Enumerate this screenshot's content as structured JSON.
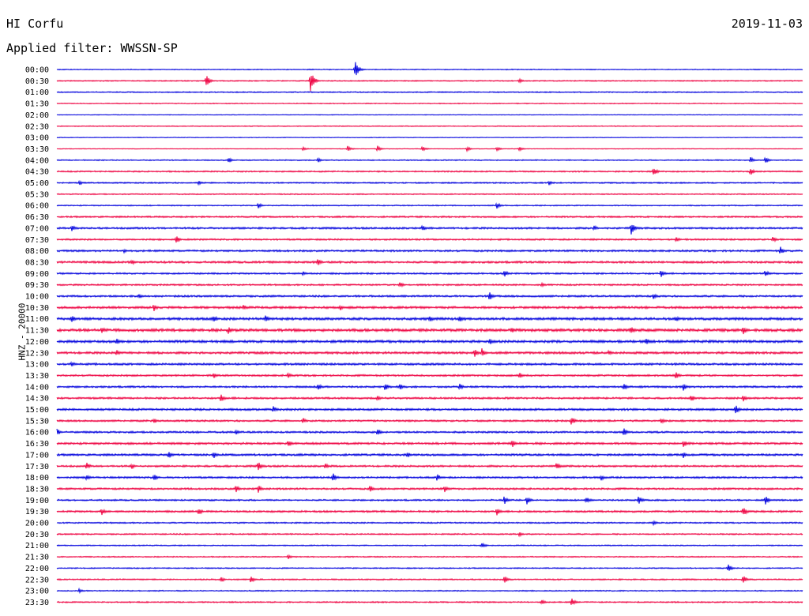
{
  "header": {
    "station": "HI Corfu",
    "date": "2019-11-03",
    "filter_label": "Applied filter: WWSSN-SP"
  },
  "colors": {
    "blue": "#0000dd",
    "red": "#ee0040",
    "text": "#000000"
  },
  "chart_data": {
    "type": "line",
    "title": "HI Corfu",
    "subtitle": "Applied filter: WWSSN-SP",
    "ylabel": "HNZ - 20000",
    "xlabel": "",
    "grid": false,
    "series_colors_alternate": [
      "blue",
      "red"
    ],
    "row_labels": [
      "00:00",
      "00:30",
      "01:00",
      "01:30",
      "02:00",
      "02:30",
      "03:00",
      "03:30",
      "04:00",
      "04:30",
      "05:00",
      "05:30",
      "06:00",
      "06:30",
      "07:00",
      "07:30",
      "08:00",
      "08:30",
      "09:00",
      "09:30",
      "10:00",
      "10:30",
      "11:00",
      "11:30",
      "12:00",
      "12:30",
      "13:00",
      "13:30",
      "14:00",
      "14:30",
      "15:00",
      "15:30",
      "16:00",
      "16:30",
      "17:00",
      "17:30",
      "18:00",
      "18:30",
      "19:00",
      "19:30",
      "20:00",
      "20:30",
      "21:00",
      "21:30",
      "22:00",
      "22:30",
      "23:00",
      "23:30"
    ],
    "noise_level": [
      0.4,
      0.5,
      0.5,
      0.4,
      0.3,
      0.4,
      0.3,
      0.3,
      0.5,
      0.6,
      0.6,
      0.5,
      0.5,
      0.7,
      0.8,
      0.7,
      0.8,
      0.9,
      0.7,
      0.7,
      0.8,
      1.0,
      1.1,
      1.2,
      1.1,
      1.0,
      0.9,
      0.8,
      0.8,
      0.8,
      0.9,
      0.8,
      0.8,
      0.9,
      0.9,
      0.8,
      0.8,
      0.8,
      0.7,
      0.8,
      0.6,
      0.6,
      0.5,
      0.5,
      0.5,
      0.6,
      0.5,
      0.6
    ],
    "events": [
      {
        "row": 0,
        "x": 0.4,
        "amp": 12
      },
      {
        "row": 1,
        "x": 0.2,
        "amp": 9
      },
      {
        "row": 1,
        "x": 0.34,
        "amp": 14
      },
      {
        "row": 1,
        "x": 0.62,
        "amp": 3
      },
      {
        "row": 7,
        "x": 0.33,
        "amp": 3
      },
      {
        "row": 7,
        "x": 0.39,
        "amp": 4
      },
      {
        "row": 7,
        "x": 0.43,
        "amp": 4
      },
      {
        "row": 7,
        "x": 0.49,
        "amp": 4
      },
      {
        "row": 7,
        "x": 0.55,
        "amp": 3
      },
      {
        "row": 7,
        "x": 0.59,
        "amp": 3
      },
      {
        "row": 7,
        "x": 0.62,
        "amp": 3
      },
      {
        "row": 8,
        "x": 0.23,
        "amp": 4
      },
      {
        "row": 8,
        "x": 0.35,
        "amp": 3
      },
      {
        "row": 8,
        "x": 0.93,
        "amp": 4
      },
      {
        "row": 8,
        "x": 0.95,
        "amp": 5
      },
      {
        "row": 9,
        "x": 0.8,
        "amp": 6
      },
      {
        "row": 9,
        "x": 0.93,
        "amp": 5
      },
      {
        "row": 10,
        "x": 0.03,
        "amp": 3
      },
      {
        "row": 10,
        "x": 0.19,
        "amp": 3
      },
      {
        "row": 10,
        "x": 0.66,
        "amp": 3
      },
      {
        "row": 12,
        "x": 0.27,
        "amp": 4
      },
      {
        "row": 12,
        "x": 0.59,
        "amp": 4
      },
      {
        "row": 14,
        "x": 0.02,
        "amp": 5
      },
      {
        "row": 14,
        "x": 0.49,
        "amp": 4
      },
      {
        "row": 14,
        "x": 0.72,
        "amp": 4
      },
      {
        "row": 14,
        "x": 0.77,
        "amp": 9
      },
      {
        "row": 15,
        "x": 0.16,
        "amp": 5
      },
      {
        "row": 15,
        "x": 0.83,
        "amp": 4
      },
      {
        "row": 15,
        "x": 0.96,
        "amp": 4
      },
      {
        "row": 16,
        "x": 0.09,
        "amp": 3
      },
      {
        "row": 16,
        "x": 0.97,
        "amp": 6
      },
      {
        "row": 17,
        "x": 0.1,
        "amp": 4
      },
      {
        "row": 17,
        "x": 0.35,
        "amp": 5
      },
      {
        "row": 18,
        "x": 0.33,
        "amp": 3
      },
      {
        "row": 18,
        "x": 0.6,
        "amp": 5
      },
      {
        "row": 18,
        "x": 0.81,
        "amp": 5
      },
      {
        "row": 18,
        "x": 0.95,
        "amp": 5
      },
      {
        "row": 19,
        "x": 0.46,
        "amp": 4
      },
      {
        "row": 19,
        "x": 0.65,
        "amp": 3
      },
      {
        "row": 20,
        "x": 0.11,
        "amp": 4
      },
      {
        "row": 20,
        "x": 0.58,
        "amp": 6
      },
      {
        "row": 20,
        "x": 0.8,
        "amp": 4
      },
      {
        "row": 21,
        "x": 0.13,
        "amp": 5
      },
      {
        "row": 21,
        "x": 0.25,
        "amp": 4
      },
      {
        "row": 21,
        "x": 0.38,
        "amp": 4
      },
      {
        "row": 22,
        "x": 0.02,
        "amp": 5
      },
      {
        "row": 22,
        "x": 0.21,
        "amp": 5
      },
      {
        "row": 22,
        "x": 0.28,
        "amp": 6
      },
      {
        "row": 22,
        "x": 0.5,
        "amp": 5
      },
      {
        "row": 22,
        "x": 0.54,
        "amp": 5
      },
      {
        "row": 22,
        "x": 0.83,
        "amp": 4
      },
      {
        "row": 23,
        "x": 0.06,
        "amp": 5
      },
      {
        "row": 23,
        "x": 0.23,
        "amp": 5
      },
      {
        "row": 23,
        "x": 0.61,
        "amp": 4
      },
      {
        "row": 23,
        "x": 0.77,
        "amp": 6
      },
      {
        "row": 23,
        "x": 0.92,
        "amp": 6
      },
      {
        "row": 24,
        "x": 0.08,
        "amp": 4
      },
      {
        "row": 24,
        "x": 0.58,
        "amp": 5
      },
      {
        "row": 24,
        "x": 0.79,
        "amp": 5
      },
      {
        "row": 25,
        "x": 0.08,
        "amp": 4
      },
      {
        "row": 25,
        "x": 0.56,
        "amp": 6
      },
      {
        "row": 25,
        "x": 0.57,
        "amp": 6
      },
      {
        "row": 25,
        "x": 0.74,
        "amp": 4
      },
      {
        "row": 26,
        "x": 0.02,
        "amp": 4
      },
      {
        "row": 27,
        "x": 0.21,
        "amp": 4
      },
      {
        "row": 27,
        "x": 0.31,
        "amp": 4
      },
      {
        "row": 27,
        "x": 0.62,
        "amp": 4
      },
      {
        "row": 27,
        "x": 0.83,
        "amp": 5
      },
      {
        "row": 28,
        "x": 0.35,
        "amp": 5
      },
      {
        "row": 28,
        "x": 0.44,
        "amp": 5
      },
      {
        "row": 28,
        "x": 0.46,
        "amp": 5
      },
      {
        "row": 28,
        "x": 0.54,
        "amp": 5
      },
      {
        "row": 28,
        "x": 0.76,
        "amp": 5
      },
      {
        "row": 28,
        "x": 0.84,
        "amp": 5
      },
      {
        "row": 29,
        "x": 0.22,
        "amp": 6
      },
      {
        "row": 29,
        "x": 0.43,
        "amp": 4
      },
      {
        "row": 29,
        "x": 0.85,
        "amp": 6
      },
      {
        "row": 29,
        "x": 0.92,
        "amp": 5
      },
      {
        "row": 30,
        "x": 0.29,
        "amp": 5
      },
      {
        "row": 30,
        "x": 0.91,
        "amp": 6
      },
      {
        "row": 31,
        "x": 0.13,
        "amp": 4
      },
      {
        "row": 31,
        "x": 0.33,
        "amp": 4
      },
      {
        "row": 31,
        "x": 0.69,
        "amp": 6
      },
      {
        "row": 31,
        "x": 0.81,
        "amp": 4
      },
      {
        "row": 32,
        "x": 0.0,
        "amp": 5
      },
      {
        "row": 32,
        "x": 0.24,
        "amp": 4
      },
      {
        "row": 32,
        "x": 0.43,
        "amp": 5
      },
      {
        "row": 32,
        "x": 0.76,
        "amp": 6
      },
      {
        "row": 33,
        "x": 0.31,
        "amp": 5
      },
      {
        "row": 33,
        "x": 0.61,
        "amp": 6
      },
      {
        "row": 33,
        "x": 0.84,
        "amp": 5
      },
      {
        "row": 34,
        "x": 0.15,
        "amp": 5
      },
      {
        "row": 34,
        "x": 0.21,
        "amp": 5
      },
      {
        "row": 34,
        "x": 0.47,
        "amp": 4
      },
      {
        "row": 34,
        "x": 0.84,
        "amp": 4
      },
      {
        "row": 35,
        "x": 0.04,
        "amp": 5
      },
      {
        "row": 35,
        "x": 0.1,
        "amp": 4
      },
      {
        "row": 35,
        "x": 0.27,
        "amp": 7
      },
      {
        "row": 35,
        "x": 0.36,
        "amp": 4
      },
      {
        "row": 35,
        "x": 0.67,
        "amp": 5
      },
      {
        "row": 36,
        "x": 0.04,
        "amp": 4
      },
      {
        "row": 36,
        "x": 0.13,
        "amp": 5
      },
      {
        "row": 36,
        "x": 0.37,
        "amp": 7
      },
      {
        "row": 36,
        "x": 0.51,
        "amp": 5
      },
      {
        "row": 36,
        "x": 0.73,
        "amp": 4
      },
      {
        "row": 37,
        "x": 0.24,
        "amp": 5
      },
      {
        "row": 37,
        "x": 0.27,
        "amp": 5
      },
      {
        "row": 37,
        "x": 0.42,
        "amp": 5
      },
      {
        "row": 37,
        "x": 0.52,
        "amp": 5
      },
      {
        "row": 38,
        "x": 0.6,
        "amp": 6
      },
      {
        "row": 38,
        "x": 0.63,
        "amp": 6
      },
      {
        "row": 38,
        "x": 0.71,
        "amp": 5
      },
      {
        "row": 38,
        "x": 0.78,
        "amp": 6
      },
      {
        "row": 38,
        "x": 0.95,
        "amp": 6
      },
      {
        "row": 39,
        "x": 0.06,
        "amp": 5
      },
      {
        "row": 39,
        "x": 0.19,
        "amp": 5
      },
      {
        "row": 39,
        "x": 0.59,
        "amp": 5
      },
      {
        "row": 39,
        "x": 0.92,
        "amp": 7
      },
      {
        "row": 40,
        "x": 0.8,
        "amp": 3
      },
      {
        "row": 41,
        "x": 0.62,
        "amp": 3
      },
      {
        "row": 42,
        "x": 0.57,
        "amp": 4
      },
      {
        "row": 43,
        "x": 0.31,
        "amp": 3
      },
      {
        "row": 44,
        "x": 0.9,
        "amp": 5
      },
      {
        "row": 45,
        "x": 0.22,
        "amp": 4
      },
      {
        "row": 45,
        "x": 0.26,
        "amp": 5
      },
      {
        "row": 45,
        "x": 0.6,
        "amp": 5
      },
      {
        "row": 45,
        "x": 0.92,
        "amp": 6
      },
      {
        "row": 46,
        "x": 0.03,
        "amp": 3
      },
      {
        "row": 47,
        "x": 0.65,
        "amp": 4
      },
      {
        "row": 47,
        "x": 0.69,
        "amp": 6
      }
    ]
  }
}
